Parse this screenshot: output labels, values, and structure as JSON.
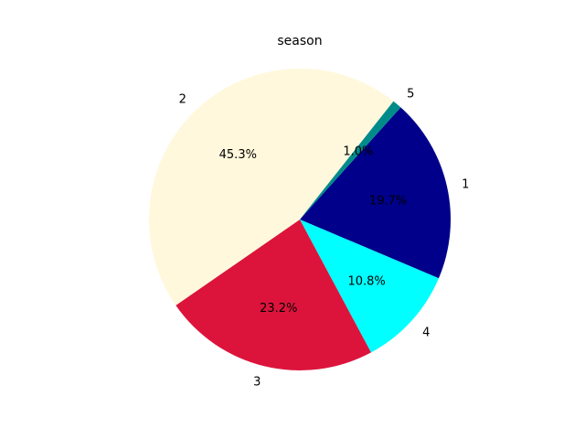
{
  "chart_data": {
    "type": "pie",
    "title": "season",
    "slices": [
      {
        "label": "1",
        "percent": 19.7,
        "pct_label": "19.7%",
        "color": "#00008b"
      },
      {
        "label": "4",
        "percent": 10.8,
        "pct_label": "10.8%",
        "color": "#00ffff"
      },
      {
        "label": "3",
        "percent": 23.2,
        "pct_label": "23.2%",
        "color": "#dc143c"
      },
      {
        "label": "2",
        "percent": 45.3,
        "pct_label": "45.3%",
        "color": "#fff8dc"
      },
      {
        "label": "5",
        "percent": 1.0,
        "pct_label": "1.0%",
        "color": "#008b8b"
      }
    ]
  }
}
